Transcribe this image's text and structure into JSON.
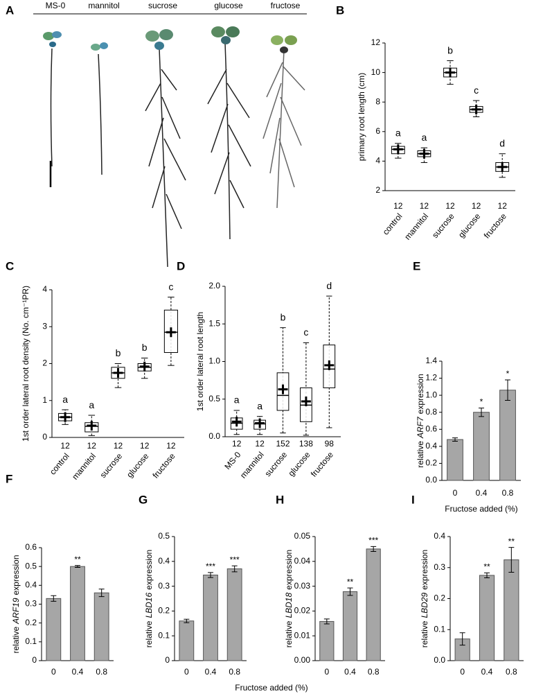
{
  "panel_a": {
    "panel": "A",
    "labels": [
      "MS-0",
      "mannitol",
      "sucrose",
      "glucose",
      "fructose"
    ]
  },
  "shared_xlabel": "Fructose added (%)",
  "chart_data": [
    {
      "type": "box",
      "panel": "B",
      "ylabel": "primary root length (cm)",
      "categories": [
        "control",
        "mannitol",
        "sucrose",
        "glucose",
        "fructose"
      ],
      "ylim": [
        2,
        12
      ],
      "yticks": [
        2,
        4,
        6,
        8,
        10,
        12
      ],
      "n": [
        12,
        12,
        12,
        12,
        12
      ],
      "letters": [
        "a",
        "a",
        "b",
        "c",
        "d"
      ],
      "median": [
        4.8,
        4.5,
        10.0,
        7.5,
        3.6
      ],
      "mean": [
        4.8,
        4.5,
        10.0,
        7.5,
        3.6
      ],
      "q1": [
        4.5,
        4.3,
        9.7,
        7.3,
        3.3
      ],
      "q3": [
        5.0,
        4.7,
        10.3,
        7.7,
        3.9
      ],
      "whisker_low": [
        4.2,
        3.9,
        9.2,
        7.0,
        2.9
      ],
      "whisker_high": [
        5.2,
        4.9,
        10.8,
        8.1,
        4.5
      ]
    },
    {
      "type": "box",
      "panel": "C",
      "ylabel": "1st order lateral root density (No. cm⁻¹PR)",
      "categories": [
        "control",
        "mannitol",
        "sucrose",
        "glucose",
        "fructose"
      ],
      "ylim": [
        0,
        4
      ],
      "yticks": [
        0,
        1,
        2,
        3,
        4
      ],
      "n": [
        12,
        12,
        12,
        12,
        12
      ],
      "letters": [
        "a",
        "a",
        "b",
        "b",
        "c"
      ],
      "median": [
        0.55,
        0.3,
        1.75,
        1.9,
        2.85
      ],
      "mean": [
        0.55,
        0.32,
        1.75,
        1.92,
        2.85
      ],
      "q1": [
        0.45,
        0.15,
        1.6,
        1.8,
        2.3
      ],
      "q3": [
        0.65,
        0.4,
        1.9,
        2.0,
        3.45
      ],
      "whisker_low": [
        0.35,
        0.05,
        1.35,
        1.6,
        1.95
      ],
      "whisker_high": [
        0.75,
        0.6,
        2.0,
        2.15,
        3.8
      ]
    },
    {
      "type": "box",
      "panel": "D",
      "ylabel": "1st order lateral root length",
      "categories": [
        "MS-0",
        "mannitol",
        "sucrose",
        "glucose",
        "fructose"
      ],
      "ylim": [
        0,
        2
      ],
      "yticks": [
        {
          "value": 0,
          "label": "0.0"
        },
        0.5,
        {
          "value": 1,
          "label": "1.0"
        },
        1.5,
        {
          "value": 2,
          "label": "2.0"
        }
      ],
      "n": [
        12,
        12,
        152,
        138,
        98
      ],
      "letters": [
        "a",
        "a",
        "b",
        "c",
        "d"
      ],
      "median": [
        0.18,
        0.17,
        0.55,
        0.42,
        0.9
      ],
      "mean": [
        0.2,
        0.18,
        0.63,
        0.47,
        0.95
      ],
      "q1": [
        0.1,
        0.1,
        0.35,
        0.2,
        0.65
      ],
      "q3": [
        0.25,
        0.22,
        0.85,
        0.65,
        1.22
      ],
      "whisker_low": [
        0.03,
        0.03,
        0.05,
        0.02,
        0.12
      ],
      "whisker_high": [
        0.35,
        0.27,
        1.45,
        1.25,
        1.87
      ]
    },
    {
      "type": "bar",
      "panel": "E",
      "ylabel": {
        "before": "relative",
        "gene": "ARF7",
        "after": "expression"
      },
      "xlabel": "Fructose added (%)",
      "categories": [
        "0",
        "0.4",
        "0.8"
      ],
      "values": [
        0.48,
        0.8,
        1.06
      ],
      "errors": [
        0.02,
        0.05,
        0.12
      ],
      "annotations": [
        null,
        "*",
        "*"
      ],
      "ylim": [
        0,
        1.4
      ],
      "yticks": [
        {
          "value": 0,
          "label": "0.0"
        },
        0.2,
        0.4,
        0.6,
        0.8,
        {
          "value": 1,
          "label": "1.0"
        },
        1.2,
        1.4
      ]
    },
    {
      "type": "bar",
      "panel": "F",
      "ylabel": {
        "before": "relative",
        "gene": "ARF19",
        "after": "expression"
      },
      "categories": [
        "0",
        "0.4",
        "0.8"
      ],
      "values": [
        0.33,
        0.5,
        0.36
      ],
      "errors": [
        0.015,
        0.005,
        0.02
      ],
      "annotations": [
        null,
        "**",
        null
      ],
      "ylim": [
        0,
        0.6
      ],
      "yticks": [
        0,
        0.1,
        0.2,
        0.3,
        0.4,
        0.5,
        0.6
      ]
    },
    {
      "type": "bar",
      "panel": "G",
      "ylabel": {
        "before": "relative",
        "gene": "LBD16",
        "after": "expression"
      },
      "categories": [
        "0",
        "0.4",
        "0.8"
      ],
      "values": [
        0.16,
        0.345,
        0.37
      ],
      "errors": [
        0.007,
        0.01,
        0.012
      ],
      "annotations": [
        null,
        "***",
        "***"
      ],
      "ylim": [
        0,
        0.5
      ],
      "yticks": [
        0,
        0.1,
        0.2,
        0.3,
        0.4,
        0.5
      ]
    },
    {
      "type": "bar",
      "panel": "H",
      "ylabel": {
        "before": "relative",
        "gene": "LBD18",
        "after": "expression"
      },
      "categories": [
        "0",
        "0.4",
        "0.8"
      ],
      "values": [
        0.0158,
        0.0278,
        0.045
      ],
      "errors": [
        0.001,
        0.0015,
        0.001
      ],
      "annotations": [
        null,
        "**",
        "***"
      ],
      "ylim": [
        0,
        0.05
      ],
      "yticks": [
        {
          "value": 0,
          "label": "0.00"
        },
        0.01,
        0.02,
        0.03,
        0.04,
        0.05
      ]
    },
    {
      "type": "bar",
      "panel": "I",
      "ylabel": {
        "before": "relative",
        "gene": "LBD29",
        "after": "expression"
      },
      "categories": [
        "0",
        "0.4",
        "0.8"
      ],
      "values": [
        0.07,
        0.275,
        0.325
      ],
      "errors": [
        0.02,
        0.008,
        0.04
      ],
      "annotations": [
        null,
        "**",
        "**"
      ],
      "ylim": [
        0,
        0.4
      ],
      "yticks": [
        {
          "value": 0,
          "label": "0.0"
        },
        0.1,
        0.2,
        0.3,
        0.4
      ]
    }
  ]
}
